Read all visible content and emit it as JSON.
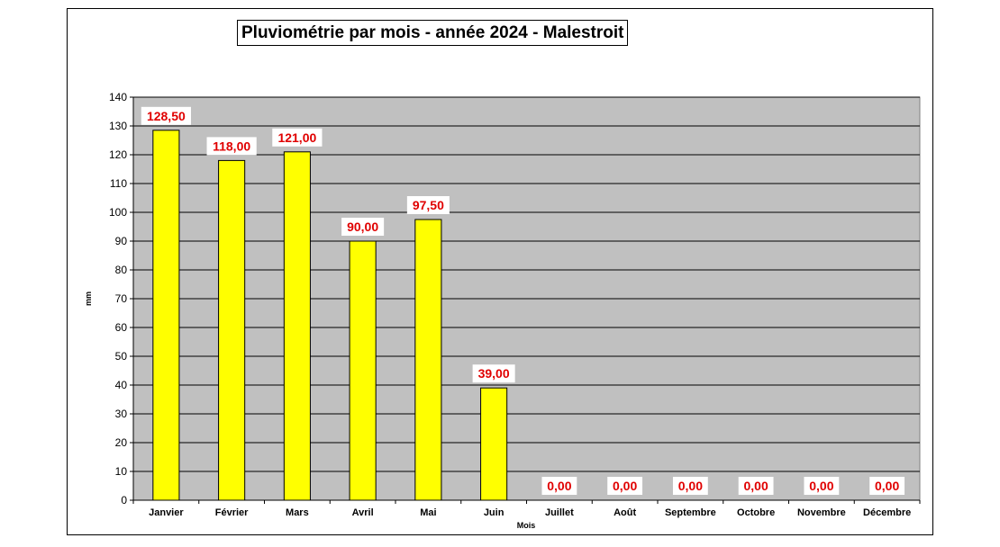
{
  "chart_data": {
    "type": "bar",
    "title": "Pluviométrie par mois - année 2024 - Malestroit",
    "xlabel": "Mois",
    "ylabel": "mm",
    "categories": [
      "Janvier",
      "Février",
      "Mars",
      "Avril",
      "Mai",
      "Juin",
      "Juillet",
      "Août",
      "Septembre",
      "Octobre",
      "Novembre",
      "Décembre"
    ],
    "values": [
      128.5,
      118,
      121,
      90,
      97.5,
      39,
      0,
      0,
      0,
      0,
      0,
      0
    ],
    "value_labels": [
      "128,50",
      "118,00",
      "121,00",
      "90,00",
      "97,50",
      "39,00",
      "0,00",
      "0,00",
      "0,00",
      "0,00",
      "0,00",
      "0,00"
    ],
    "ylim": [
      0,
      140
    ],
    "yticks": [
      "0",
      "10",
      "20",
      "30",
      "40",
      "50",
      "60",
      "70",
      "80",
      "90",
      "100",
      "110",
      "120",
      "130",
      "140"
    ],
    "grid": true,
    "legend": "none",
    "colors": {
      "bar": "#ffff00",
      "plot_background": "#c0c0c0",
      "data_label": "#e00000",
      "gridline": "#000000"
    }
  }
}
